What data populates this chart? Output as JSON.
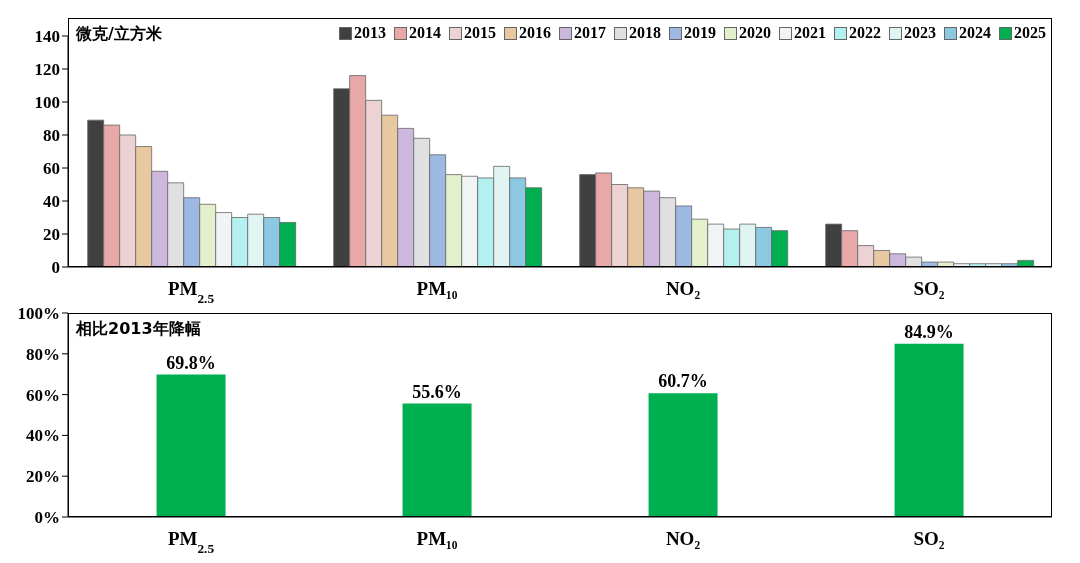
{
  "chart_data": [
    {
      "type": "bar",
      "categories": [
        "PM$_{2.5}$",
        "PM₁₀",
        "NO₂",
        "SO₂"
      ],
      "ylim": [
        0,
        140
      ],
      "yticks": [
        0,
        20,
        40,
        60,
        80,
        100,
        120,
        140
      ],
      "legend": "top right",
      "annotations": [
        "微克/立方米"
      ],
      "series": [
        {
          "name": "2013",
          "color": "#404040",
          "values": [
            89,
            108,
            56,
            26
          ]
        },
        {
          "name": "2014",
          "color": "#e8a8a8",
          "values": [
            86,
            116,
            57,
            22
          ]
        },
        {
          "name": "2015",
          "color": "#ecd2d2",
          "values": [
            80,
            101,
            50,
            13
          ]
        },
        {
          "name": "2016",
          "color": "#e8c8a0",
          "values": [
            73,
            92,
            48,
            10
          ]
        },
        {
          "name": "2017",
          "color": "#cbb8dc",
          "values": [
            58,
            84,
            46,
            8
          ]
        },
        {
          "name": "2018",
          "color": "#e0e0e0",
          "values": [
            51,
            78,
            42,
            6
          ]
        },
        {
          "name": "2019",
          "color": "#9db8e2",
          "values": [
            42,
            68,
            37,
            3
          ]
        },
        {
          "name": "2020",
          "color": "#e2f0cc",
          "values": [
            38,
            56,
            29,
            3
          ]
        },
        {
          "name": "2021",
          "color": "#f0f4f4",
          "values": [
            33,
            55,
            26,
            2
          ]
        },
        {
          "name": "2022",
          "color": "#b4f0f0",
          "values": [
            30,
            54,
            23,
            2
          ]
        },
        {
          "name": "2023",
          "color": "#e0f4f4",
          "values": [
            32,
            61,
            26,
            2
          ]
        },
        {
          "name": "2024",
          "color": "#8cc8e2",
          "values": [
            30,
            54,
            24,
            2
          ]
        },
        {
          "name": "2025",
          "color": "#00b050",
          "values": [
            27,
            48,
            22,
            4
          ]
        }
      ]
    },
    {
      "type": "bar",
      "categories": [
        "PM$_{2.5}$",
        "PM₁₀",
        "NO₂",
        "SO₂"
      ],
      "ylim": [
        0,
        100
      ],
      "yticks": [
        {
          "value": 0,
          "label": "0%"
        },
        {
          "value": 20,
          "label": "20%"
        },
        {
          "value": 40,
          "label": "40%"
        },
        {
          "value": 60,
          "label": "60%"
        },
        {
          "value": 80,
          "label": "80%"
        },
        {
          "value": 100,
          "label": "100%"
        }
      ],
      "annotations": [
        "相比2013年降幅"
      ],
      "color": "#00b050",
      "values": [
        69.8,
        55.6,
        60.7,
        84.9
      ],
      "value_labels": [
        "69.8%",
        "55.6%",
        "60.7%",
        "84.9%"
      ]
    }
  ]
}
